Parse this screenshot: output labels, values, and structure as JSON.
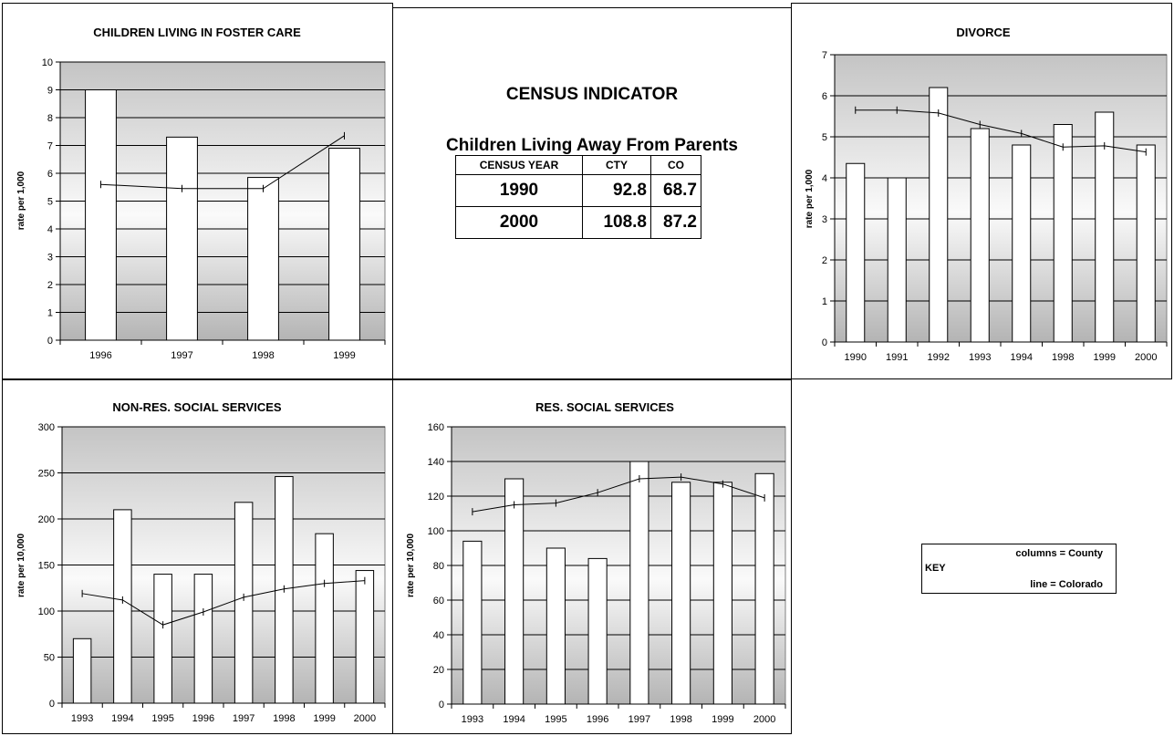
{
  "chart_data": [
    {
      "type": "bar",
      "title": "CHILDREN LIVING IN FOSTER CARE",
      "ylabel": "rate per 1,000",
      "categories": [
        "1996",
        "1997",
        "1998",
        "1999"
      ],
      "ylim": [
        0,
        10
      ],
      "yticks": [
        0,
        1,
        2,
        3,
        4,
        5,
        6,
        7,
        8,
        9,
        10
      ],
      "series": [
        {
          "name": "County",
          "type": "bar",
          "values": [
            9.0,
            7.3,
            5.85,
            6.9
          ]
        },
        {
          "name": "Colorado",
          "type": "line",
          "values": [
            5.6,
            5.45,
            5.45,
            7.35
          ]
        }
      ],
      "grid": true
    },
    {
      "type": "bar",
      "title": "DIVORCE",
      "ylabel": "rate per 1,000",
      "categories": [
        "1990",
        "1991",
        "1992",
        "1993",
        "1994",
        "1998",
        "1999",
        "2000"
      ],
      "ylim": [
        0,
        7
      ],
      "yticks": [
        0,
        1,
        2,
        3,
        4,
        5,
        6,
        7
      ],
      "series": [
        {
          "name": "County",
          "type": "bar",
          "values": [
            4.35,
            4.0,
            6.2,
            5.2,
            4.8,
            5.3,
            5.6,
            4.8
          ]
        },
        {
          "name": "Colorado",
          "type": "line",
          "values": [
            5.65,
            5.65,
            5.58,
            5.3,
            5.08,
            4.75,
            4.78,
            4.63
          ]
        }
      ],
      "grid": true
    },
    {
      "type": "bar",
      "title": "NON-RES. SOCIAL SERVICES",
      "ylabel": "rate per 10,000",
      "categories": [
        "1993",
        "1994",
        "1995",
        "1996",
        "1997",
        "1998",
        "1999",
        "2000"
      ],
      "ylim": [
        0,
        300
      ],
      "yticks": [
        0,
        50,
        100,
        150,
        200,
        250,
        300
      ],
      "series": [
        {
          "name": "County",
          "type": "bar",
          "values": [
            70,
            210,
            140,
            140,
            218,
            246,
            184,
            144
          ]
        },
        {
          "name": "Colorado",
          "type": "line",
          "values": [
            119,
            112,
            85,
            99,
            115,
            124,
            130,
            133
          ]
        }
      ],
      "grid": true
    },
    {
      "type": "bar",
      "title": "RES. SOCIAL SERVICES",
      "ylabel": "rate per 10,000",
      "categories": [
        "1993",
        "1994",
        "1995",
        "1996",
        "1997",
        "1998",
        "1999",
        "2000"
      ],
      "ylim": [
        0,
        160
      ],
      "yticks": [
        0,
        20,
        40,
        60,
        80,
        100,
        120,
        140,
        160
      ],
      "series": [
        {
          "name": "County",
          "type": "bar",
          "values": [
            94,
            130,
            90,
            84,
            140,
            128,
            128,
            133
          ]
        },
        {
          "name": "Colorado",
          "type": "line",
          "values": [
            111,
            115,
            116,
            122,
            130,
            131,
            127,
            119
          ]
        }
      ],
      "grid": true
    }
  ],
  "census": {
    "heading": "CENSUS INDICATOR",
    "subheading": "Children Living Away From Parents",
    "columns": [
      "CENSUS YEAR",
      "CTY",
      "CO"
    ],
    "rows": [
      [
        "1990",
        "92.8",
        "68.7"
      ],
      [
        "2000",
        "108.8",
        "87.2"
      ]
    ]
  },
  "key": {
    "label": "KEY",
    "columns_text": "columns = County",
    "line_text": "line = Colorado"
  }
}
